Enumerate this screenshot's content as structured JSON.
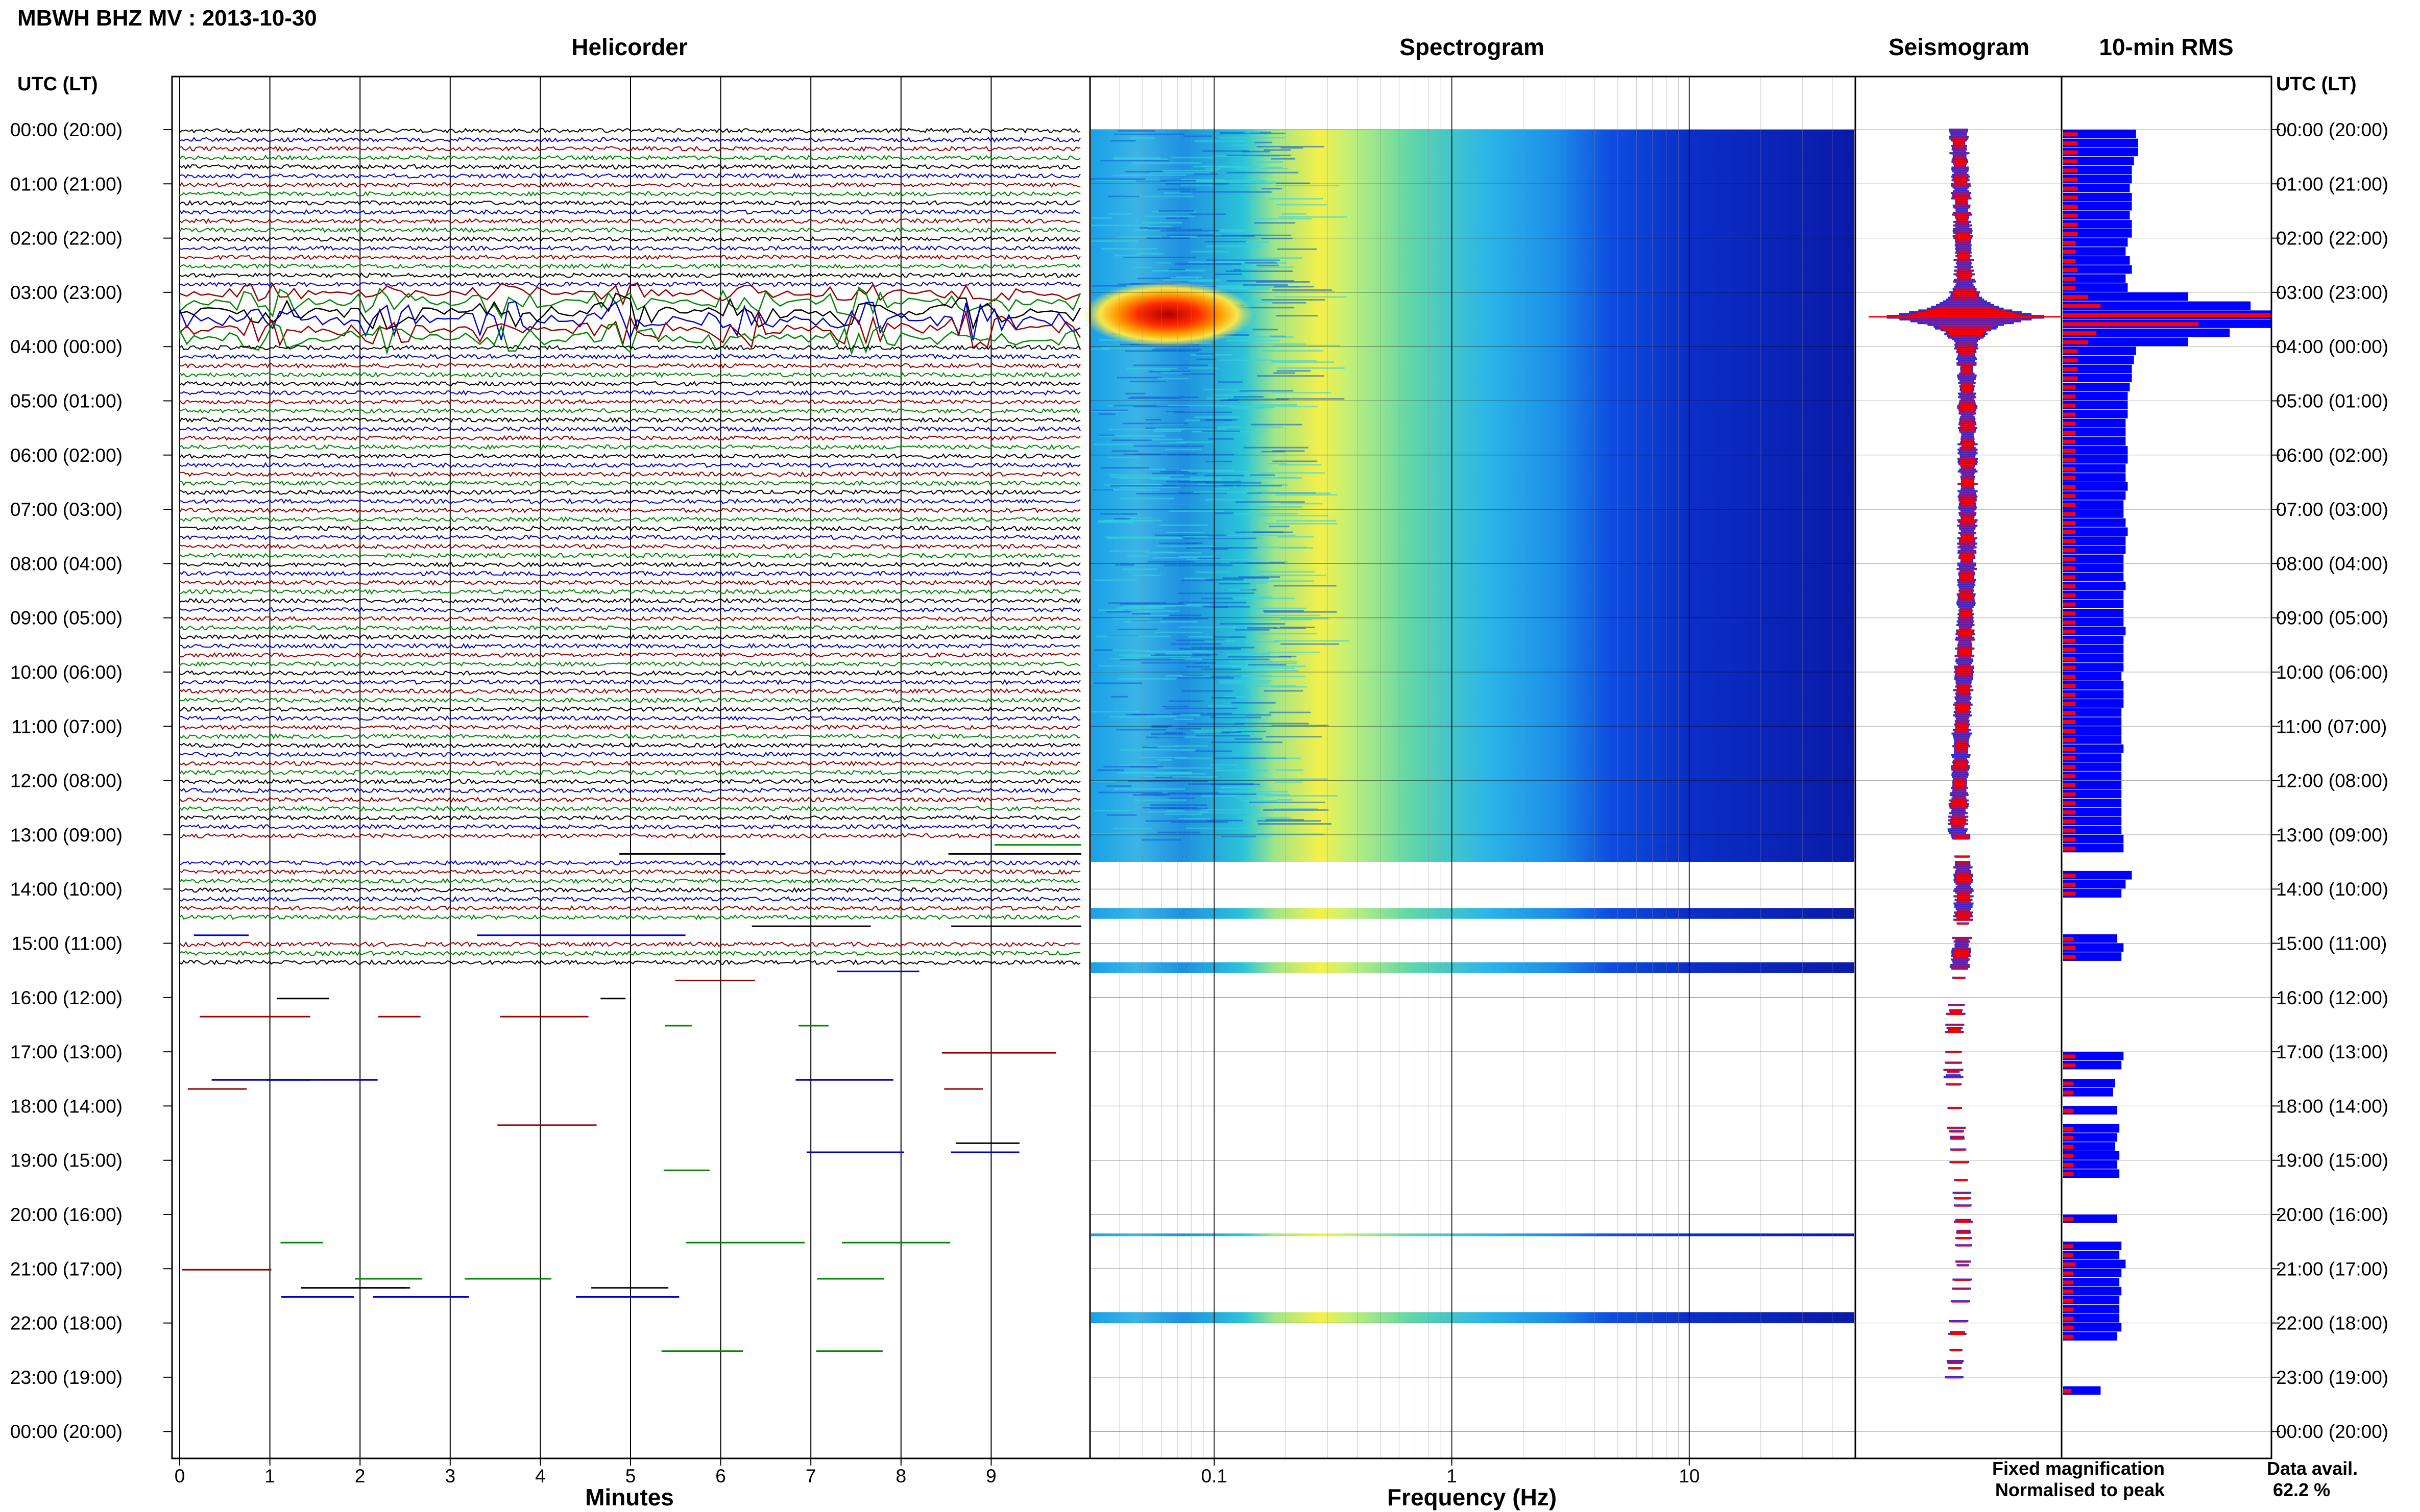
{
  "title": "MBWH BHZ MV : 2013-10-30",
  "panels": {
    "helicorder": "Helicorder",
    "spectrogram": "Spectrogram",
    "seismogram": "Seismogram",
    "rms": "10-min RMS"
  },
  "time_axis_label": "UTC (LT)",
  "time_ticks": [
    "00:00 (20:00)",
    "01:00 (21:00)",
    "02:00 (22:00)",
    "03:00 (23:00)",
    "04:00 (00:00)",
    "05:00 (01:00)",
    "06:00 (02:00)",
    "07:00 (03:00)",
    "08:00 (04:00)",
    "09:00 (05:00)",
    "10:00 (06:00)",
    "11:00 (07:00)",
    "12:00 (08:00)",
    "13:00 (09:00)",
    "14:00 (10:00)",
    "15:00 (11:00)",
    "16:00 (12:00)",
    "17:00 (13:00)",
    "18:00 (14:00)",
    "19:00 (15:00)",
    "20:00 (16:00)",
    "21:00 (17:00)",
    "22:00 (18:00)",
    "23:00 (19:00)",
    "00:00 (20:00)"
  ],
  "minutes_axis": {
    "label": "Minutes",
    "ticks": [
      "0",
      "1",
      "2",
      "3",
      "4",
      "5",
      "6",
      "7",
      "8",
      "9"
    ]
  },
  "frequency_axis": {
    "label": "Frequency (Hz)",
    "ticks": [
      "0.1",
      "1",
      "10"
    ]
  },
  "legend": {
    "fixed": "Fixed magnification",
    "normalised": "Normalised to peak",
    "fixed_color": "#0000ff",
    "normalised_color": "#ff0000"
  },
  "data_availability": {
    "label": "Data avail.",
    "value": "62.2 %"
  },
  "trace_colors": [
    "#000000",
    "#0000cc",
    "#990000",
    "#008800"
  ],
  "chart_data": [
    {
      "type": "line",
      "title": "Helicorder",
      "xlabel": "Minutes",
      "xlim": [
        0,
        10
      ],
      "ylabel": "UTC (LT)",
      "ylim_hours": [
        0,
        24
      ],
      "trace_interval_minutes": 10,
      "data_gaps_utc": [
        [
          13.1,
          13.5
        ],
        [
          14.6,
          14.9
        ],
        [
          15.5,
          24
        ]
      ],
      "event": {
        "start_utc": 3.0,
        "end_utc": 4.0,
        "peak_utc": 3.5
      }
    },
    {
      "type": "heatmap",
      "title": "Spectrogram",
      "xlabel": "Frequency (Hz)",
      "xscale": "log",
      "xlim": [
        0.03,
        50
      ],
      "ylim_hours": [
        0,
        24
      ],
      "colormap": "jet",
      "rows_with_data_utc": [
        [
          0,
          13.1
        ],
        [
          13.1,
          13.5
        ],
        [
          14.35,
          14.55
        ],
        [
          15.35,
          15.55
        ],
        [
          20.35,
          20.4
        ],
        [
          21.8,
          22.0
        ]
      ],
      "hot_spot": {
        "freq_hz": [
          0.05,
          0.1
        ],
        "utc": [
          3.1,
          3.9
        ]
      }
    },
    {
      "type": "line",
      "title": "Seismogram",
      "series": [
        {
          "name": "Fixed magnification"
        },
        {
          "name": "Normalised to peak"
        }
      ],
      "peak_utc": 3.45
    },
    {
      "type": "bar",
      "title": "10-min RMS",
      "interval_minutes": 10,
      "series": [
        {
          "name": "Fixed magnification"
        },
        {
          "name": "Normalised to peak"
        }
      ],
      "fixed_rel": [
        0.35,
        0.36,
        0.36,
        0.34,
        0.33,
        0.33,
        0.32,
        0.33,
        0.33,
        0.32,
        0.33,
        0.33,
        0.31,
        0.3,
        0.32,
        0.33,
        0.3,
        0.31,
        0.6,
        0.9,
        1.0,
        1.0,
        0.8,
        0.6,
        0.35,
        0.34,
        0.33,
        0.33,
        0.32,
        0.31,
        0.31,
        0.31,
        0.3,
        0.3,
        0.3,
        0.31,
        0.31,
        0.3,
        0.3,
        0.31,
        0.3,
        0.29,
        0.29,
        0.3,
        0.31,
        0.3,
        0.3,
        0.29,
        0.29,
        0.29,
        0.3,
        0.29,
        0.29,
        0.29,
        0.29,
        0.3,
        0.29,
        0.29,
        0.29,
        0.29,
        0.28,
        0.29,
        0.29,
        0.29,
        0.28,
        0.28,
        0.28,
        0.28,
        0.29,
        0.28,
        0.28,
        0.28,
        0.28,
        0.28,
        0.28,
        0.28,
        0.28,
        0.28,
        0.29,
        0.29,
        null,
        null,
        0.33,
        0.3,
        0.28,
        null,
        null,
        null,
        null,
        0.26,
        0.29,
        0.28,
        null,
        null,
        null,
        null,
        null,
        null,
        null,
        null,
        null,
        null,
        0.29,
        0.28,
        null,
        0.25,
        0.24,
        null,
        0.26,
        null,
        0.27,
        0.26,
        0.25,
        0.27,
        0.26,
        0.27,
        null,
        null,
        null,
        null,
        0.26,
        null,
        null,
        0.28,
        0.27,
        0.3,
        0.28,
        0.27,
        0.28,
        0.27,
        0.27,
        0.27,
        0.28,
        0.26,
        null,
        null,
        null,
        null,
        null,
        0.18,
        null,
        null,
        null,
        null,
        null,
        null,
        null,
        null,
        null,
        null,
        null,
        null
      ],
      "normalised_rel": [
        0.07,
        0.07,
        0.07,
        0.07,
        0.07,
        0.07,
        0.07,
        0.07,
        0.07,
        0.07,
        0.07,
        0.07,
        0.06,
        0.06,
        0.06,
        0.07,
        0.06,
        0.06,
        0.12,
        0.18,
        1.0,
        0.65,
        0.16,
        0.12,
        0.07,
        0.07,
        0.07,
        0.07,
        0.06,
        0.06,
        0.06,
        0.06,
        0.06,
        0.06,
        0.06,
        0.06,
        0.06,
        0.06,
        0.06,
        0.06,
        0.06,
        0.06,
        0.06,
        0.06,
        0.06,
        0.06,
        0.06,
        0.06,
        0.06,
        0.06,
        0.06,
        0.06,
        0.06,
        0.06,
        0.06,
        0.06,
        0.06,
        0.06,
        0.06,
        0.06,
        0.06,
        0.06,
        0.06,
        0.06,
        0.06,
        0.06,
        0.06,
        0.06,
        0.06,
        0.06,
        0.06,
        0.06,
        0.06,
        0.06,
        0.06,
        0.06,
        0.06,
        0.06,
        0.06,
        0.06,
        null,
        null,
        0.06,
        0.06,
        0.06,
        null,
        null,
        null,
        null,
        0.05,
        0.06,
        0.06,
        null,
        null,
        null,
        null,
        null,
        null,
        null,
        null,
        null,
        null,
        0.06,
        0.06,
        null,
        0.05,
        0.05,
        null,
        0.05,
        null,
        0.05,
        0.05,
        0.05,
        0.05,
        0.05,
        0.05,
        null,
        null,
        null,
        null,
        0.05,
        null,
        null,
        0.05,
        0.05,
        0.06,
        0.05,
        0.05,
        0.05,
        0.05,
        0.05,
        0.05,
        0.05,
        0.05,
        null,
        null,
        null,
        null,
        null,
        0.04,
        null,
        null,
        null,
        null,
        null,
        null,
        null,
        null,
        null,
        null,
        null,
        null
      ]
    }
  ]
}
